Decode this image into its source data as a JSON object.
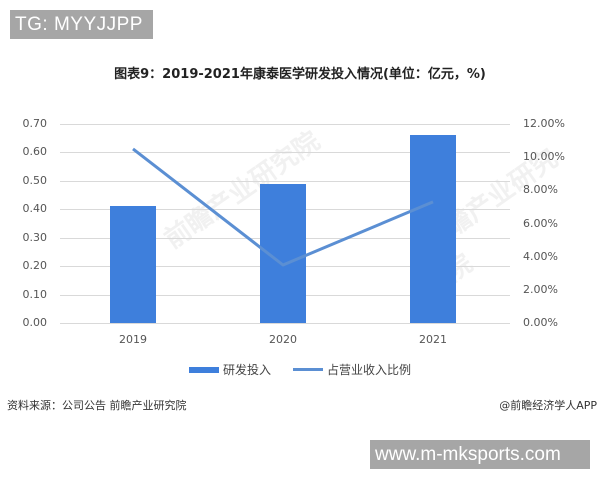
{
  "tags": {
    "top": "TG: MYYJJPP",
    "bottom": "www.m-mksports.com"
  },
  "chart_data": {
    "type": "bar+line",
    "title": "图表9：2019-2021年康泰医学研发投入情况(单位：亿元，%)",
    "categories": [
      "2019",
      "2020",
      "2021"
    ],
    "series": [
      {
        "name": "研发投入",
        "type": "bar",
        "axis": "left",
        "values": [
          0.41,
          0.49,
          0.66
        ],
        "color": "#3e7fdc"
      },
      {
        "name": "占营业收入比例",
        "type": "line",
        "axis": "right",
        "values": [
          10.5,
          3.5,
          7.3
        ],
        "unit": "%",
        "color": "#5b8fd3"
      }
    ],
    "left_axis": {
      "ylim": [
        0,
        0.7
      ],
      "ticks": [
        "0.70",
        "0.60",
        "0.50",
        "0.40",
        "0.30",
        "0.20",
        "0.10",
        "0.00"
      ]
    },
    "right_axis": {
      "ylim": [
        0,
        12
      ],
      "ticks": [
        "12.00%",
        "10.00%",
        "8.00%",
        "6.00%",
        "4.00%",
        "2.00%",
        "0.00%"
      ]
    },
    "grid": true,
    "legend_position": "bottom"
  },
  "legend": {
    "bar_label": "研发投入",
    "line_label": "占营业收入比例"
  },
  "footer": {
    "source": "资料来源：公司公告 前瞻产业研究院",
    "credit": "@前瞻经济学人APP"
  },
  "watermark": "前瞻产业研究院"
}
